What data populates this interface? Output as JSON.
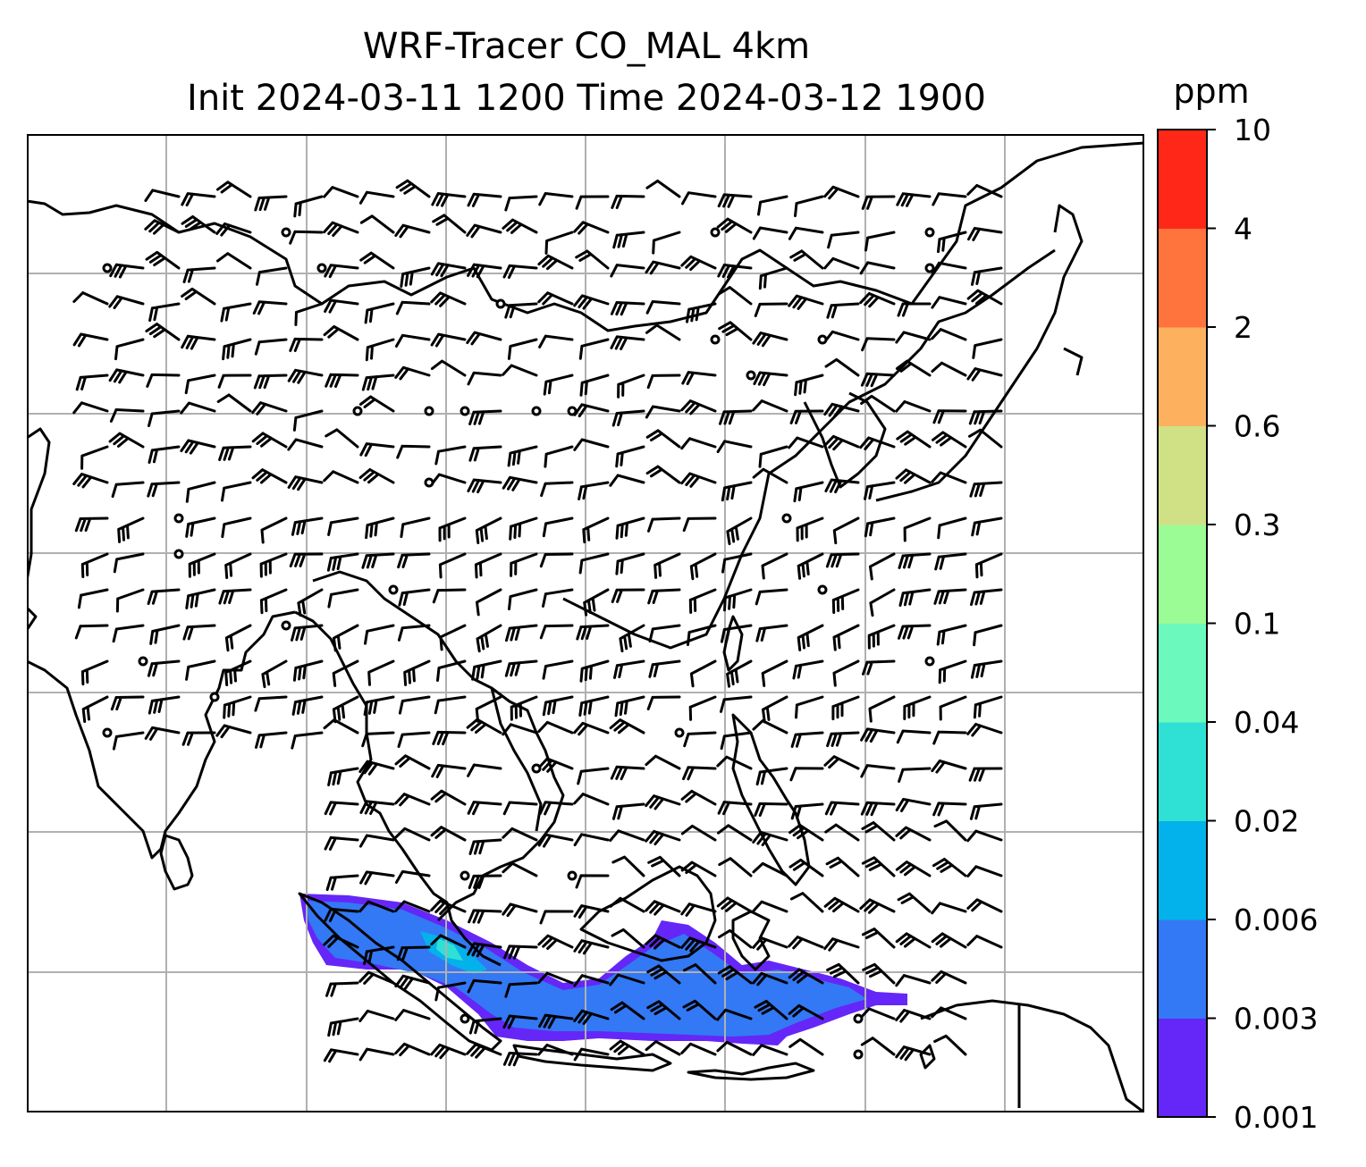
{
  "figure": {
    "title_line1": "WRF-Tracer CO_MAL 4km",
    "title_line2": "Init 2024-03-11 1200 Time 2024-03-12 1900"
  },
  "colorbar": {
    "unit": "ppm",
    "tick_labels": [
      "0.001",
      "0.003",
      "0.006",
      "0.02",
      "0.04",
      "0.1",
      "0.3",
      "0.6",
      "2",
      "4",
      "10"
    ],
    "colors": [
      "#6427f7",
      "#3378f4",
      "#03b2ea",
      "#2fe0d5",
      "#6cf9bd",
      "#9bfc96",
      "#d0e085",
      "#fdb15f",
      "#ff733d",
      "#ff2818"
    ]
  },
  "map": {
    "gridlines": true,
    "coastline_color": "#000000",
    "tracer_plume_levels": [
      "0.001",
      "0.003",
      "0.006",
      "0.04"
    ],
    "wind_barbs": "black"
  }
}
